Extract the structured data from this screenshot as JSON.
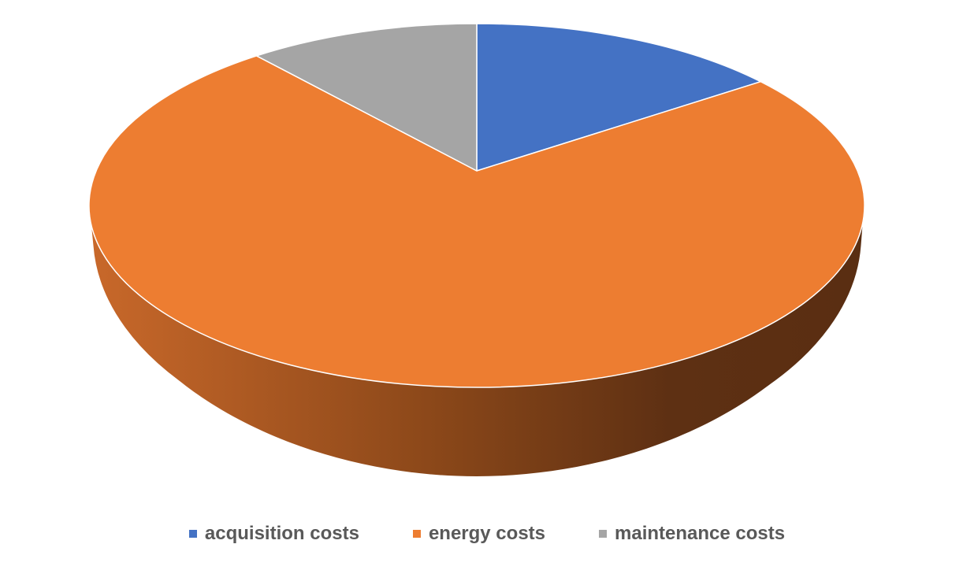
{
  "chart_data": {
    "type": "pie",
    "style": "3d",
    "unit": "percent (estimated)",
    "categories": [
      "acquisition costs",
      "energy costs",
      "maintenance costs"
    ],
    "values": [
      14,
      76,
      10
    ],
    "colors": [
      "#4472c4",
      "#ed7d31",
      "#a5a5a5"
    ],
    "legend_position": "bottom",
    "title": ""
  }
}
